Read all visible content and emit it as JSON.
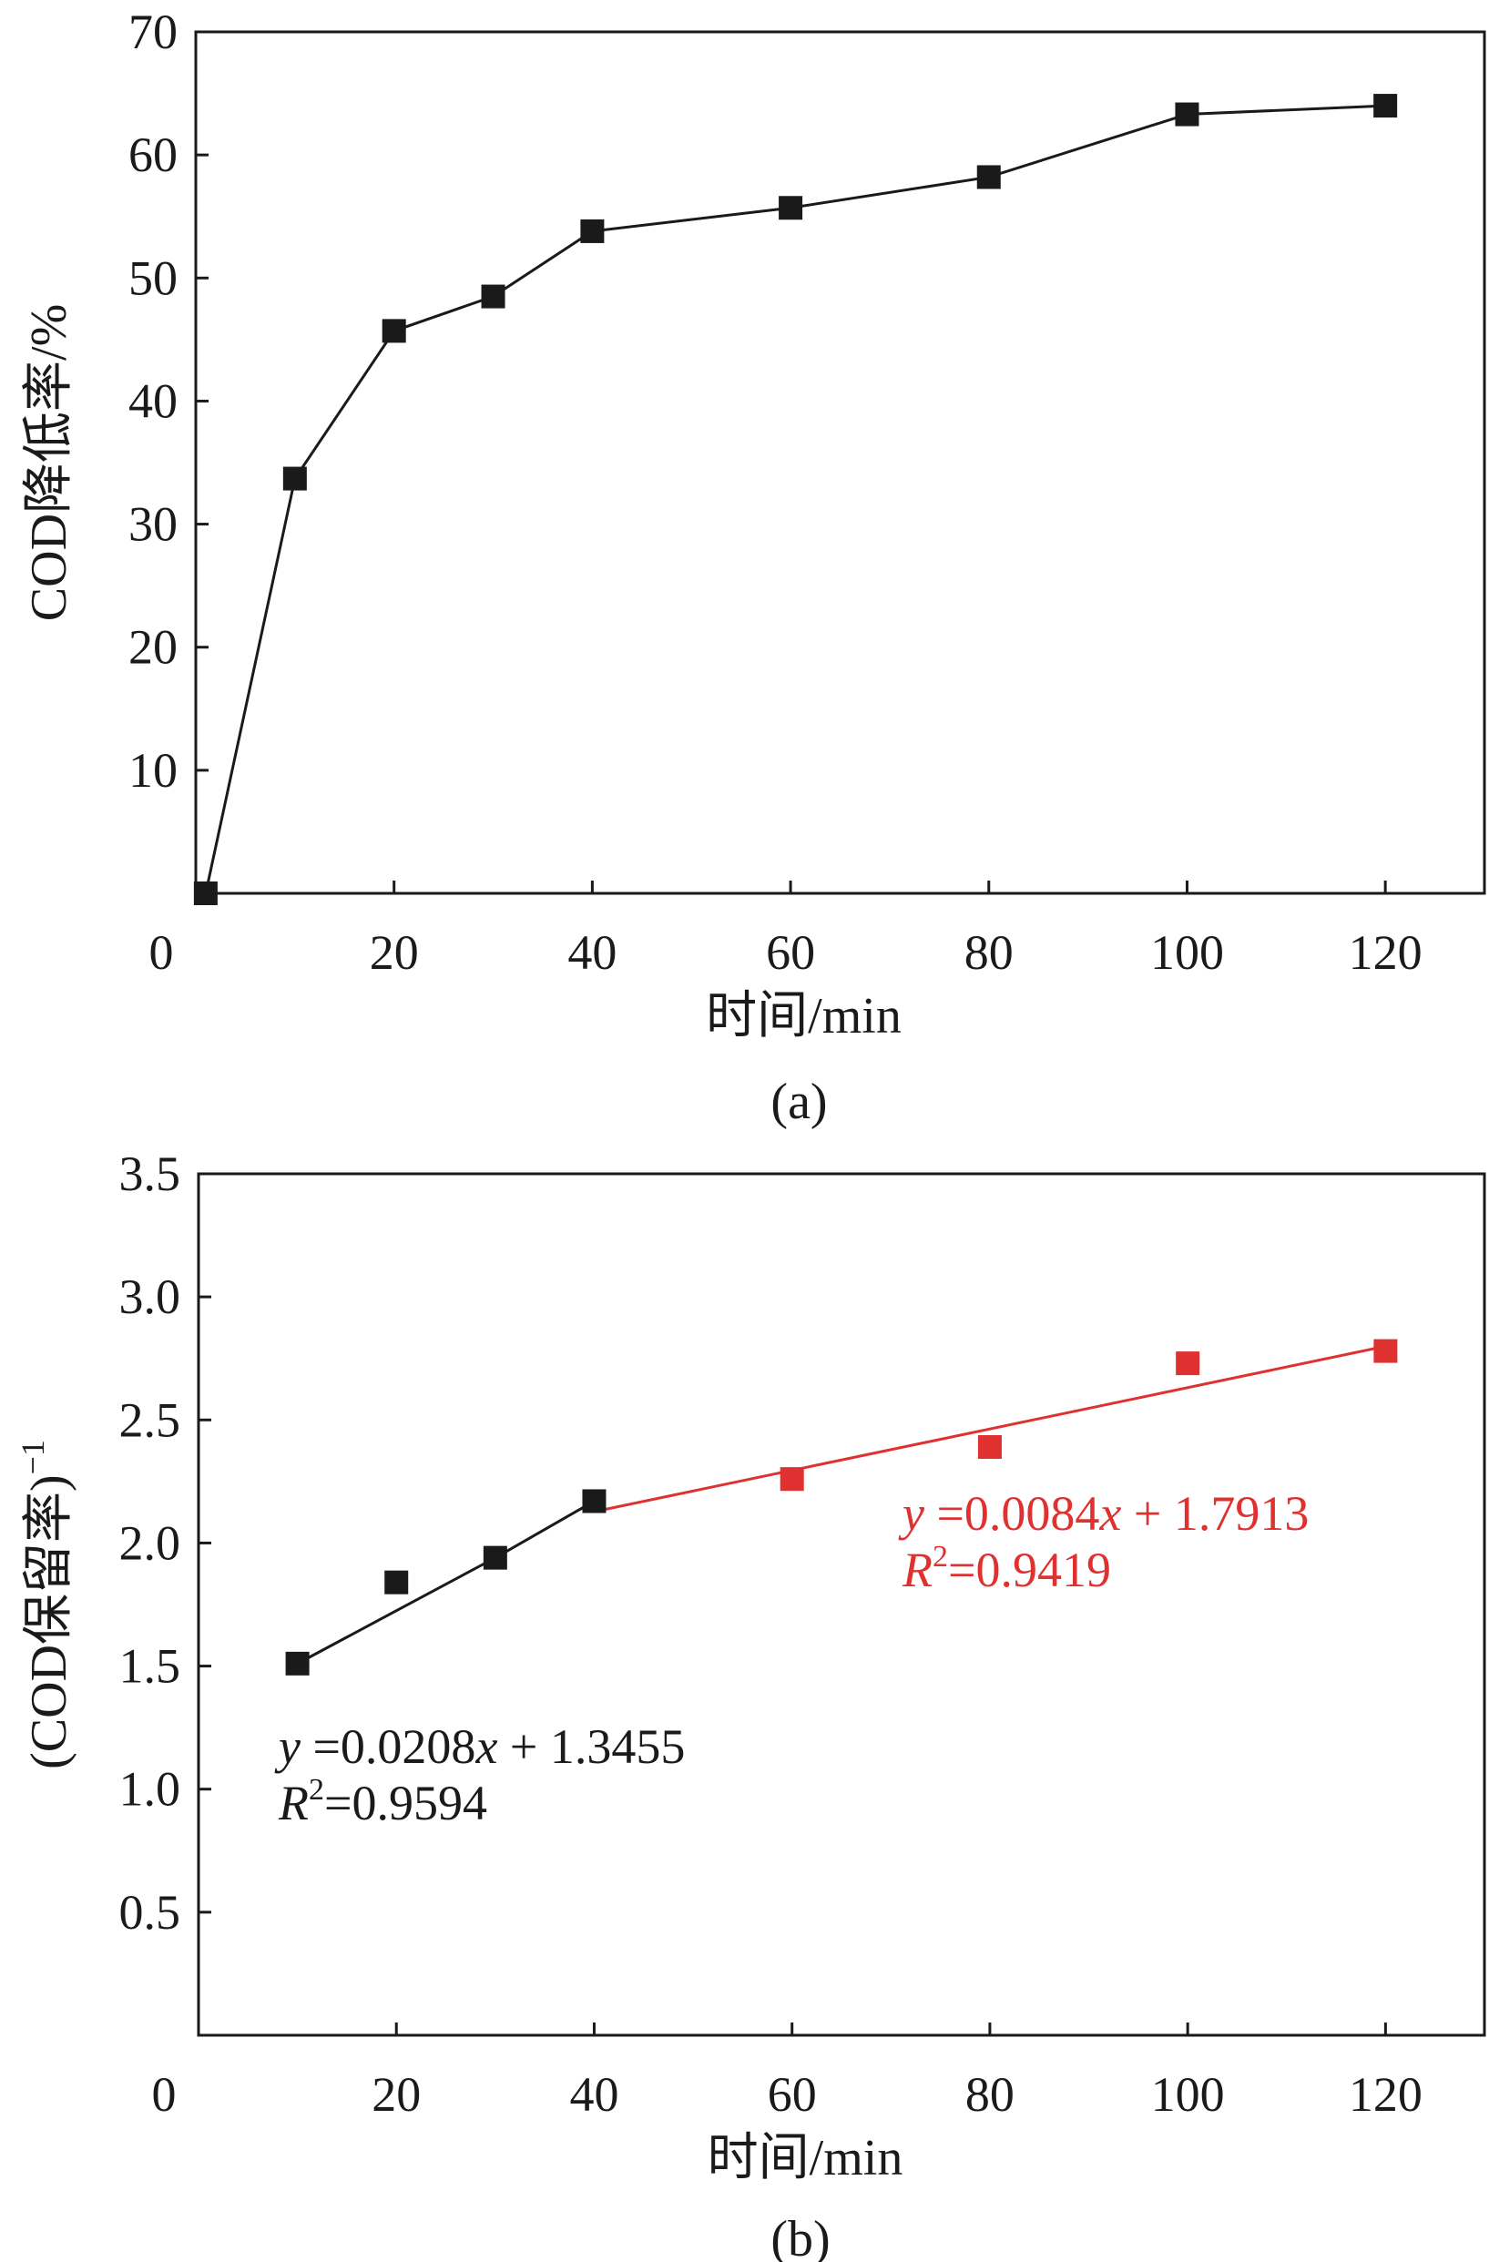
{
  "chart_data": [
    {
      "type": "line",
      "panel_label": "(a)",
      "xlabel": "时间/min",
      "ylabel": "COD降低率/%",
      "xlim": [
        0,
        130
      ],
      "ylim": [
        0,
        70
      ],
      "x_ticks": [
        0,
        20,
        40,
        60,
        80,
        100,
        120
      ],
      "y_ticks": [
        10,
        20,
        30,
        40,
        50,
        60,
        70
      ],
      "x_zero_label": "0",
      "series": [
        {
          "color": "#1a1a1a",
          "marker": "square",
          "x": [
            1,
            10,
            20,
            30,
            40,
            60,
            80,
            100,
            120
          ],
          "y": [
            0,
            33.7,
            45.7,
            48.5,
            53.8,
            55.7,
            58.2,
            63.3,
            64.0
          ]
        }
      ],
      "grid": false,
      "legend": "none"
    },
    {
      "type": "scatter",
      "panel_label": "(b)",
      "xlabel": "时间/min",
      "ylabel": "(COD保留率)",
      "ylabel_superscript": "−1",
      "xlim": [
        0,
        130
      ],
      "ylim": [
        0,
        3.5
      ],
      "x_ticks": [
        20,
        40,
        60,
        80,
        100,
        120
      ],
      "y_ticks": [
        "0.5",
        "1.0",
        "1.5",
        "2.0",
        "2.5",
        "3.0",
        "3.5"
      ],
      "x_zero_label": "0",
      "series": [
        {
          "color": "#1a1a1a",
          "marker": "square",
          "x": [
            10,
            20,
            30,
            40
          ],
          "y": [
            1.51,
            1.84,
            1.94,
            2.17
          ],
          "fit": {
            "slope": 0.0208,
            "intercept": 1.3455,
            "x_range": [
              10,
              40
            ]
          },
          "equation": {
            "y_var": "y",
            "rhs": "=0.0208",
            "x_var": "x",
            "tail": " + 1.3455"
          },
          "r2": {
            "r": "R",
            "sup": "2",
            "value": "=0.9594"
          }
        },
        {
          "color": "#e03131",
          "marker": "square",
          "x": [
            60,
            80,
            100,
            120
          ],
          "y": [
            2.26,
            2.39,
            2.73,
            2.78
          ],
          "fit": {
            "slope": 0.0084,
            "intercept": 1.7913,
            "x_range": [
              40,
              120
            ]
          },
          "equation": {
            "y_var": "y",
            "rhs": "=0.0084",
            "x_var": "x",
            "tail": " + 1.7913"
          },
          "r2": {
            "r": "R",
            "sup": "2",
            "value": "=0.9419"
          }
        }
      ],
      "grid": false,
      "legend": "none"
    }
  ]
}
